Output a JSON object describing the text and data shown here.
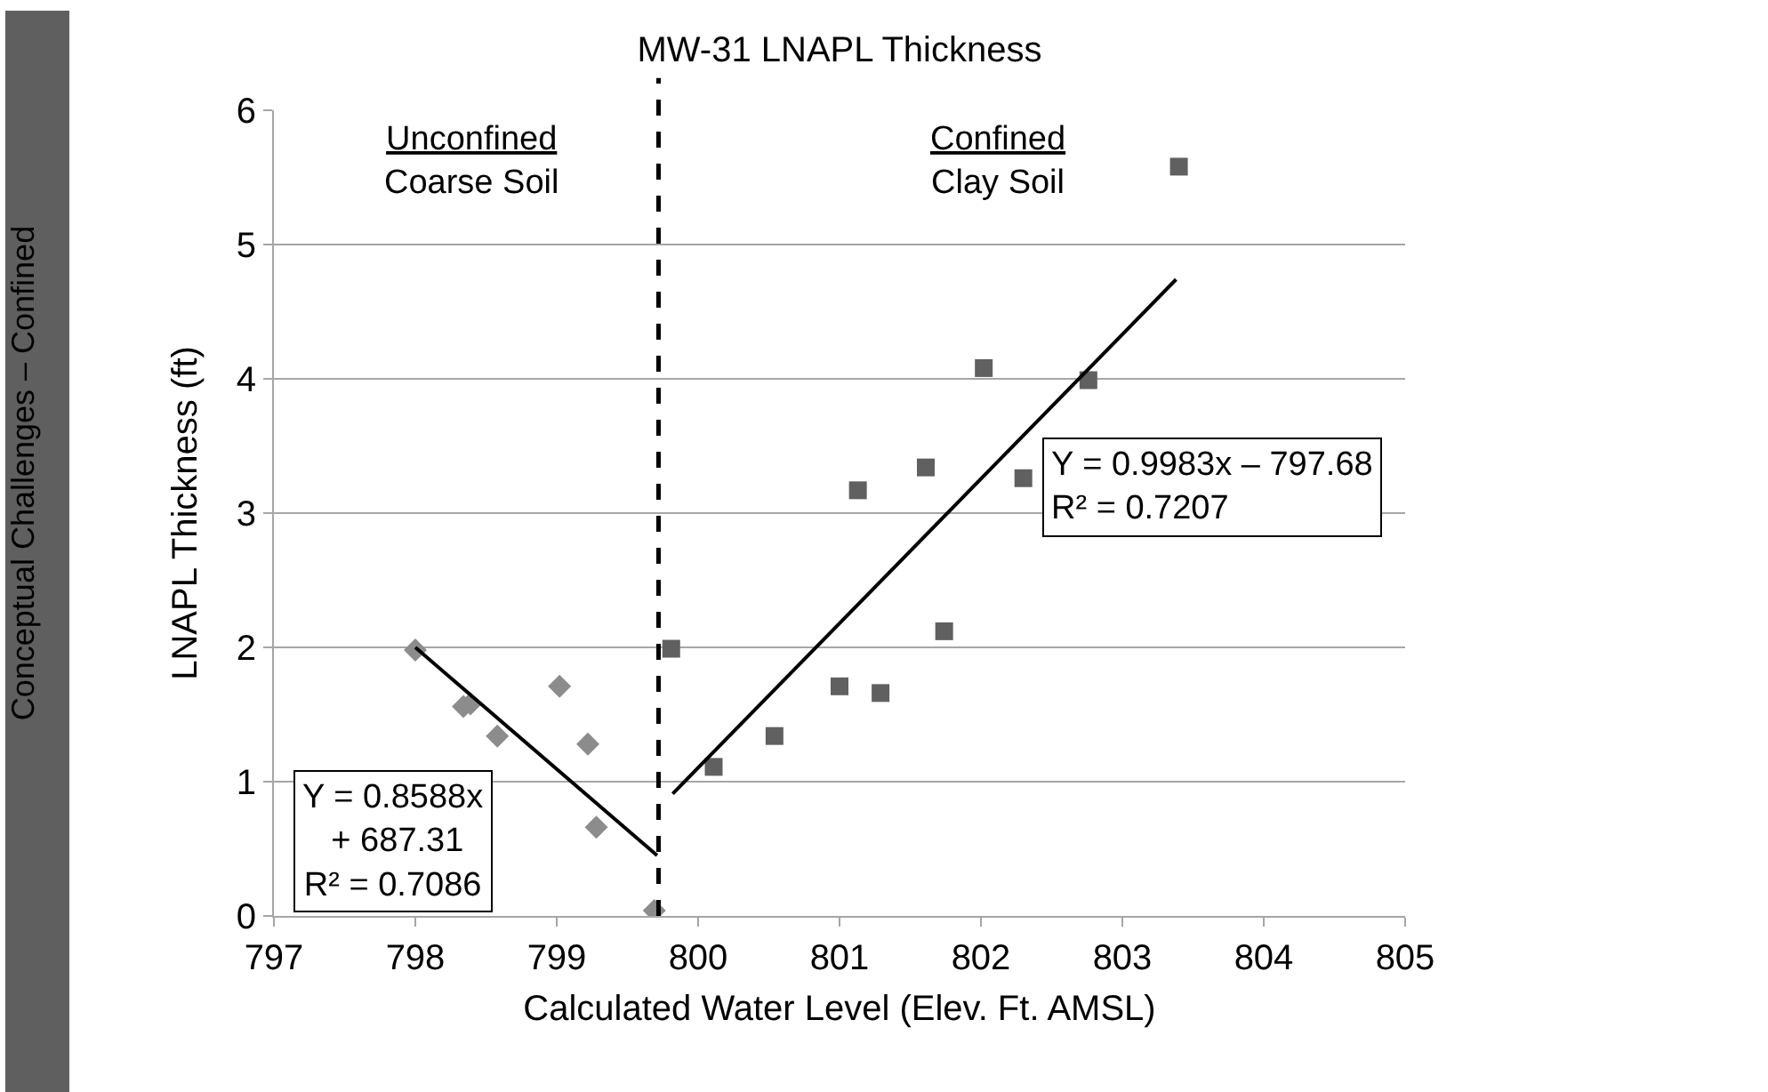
{
  "chart_data": {
    "type": "scatter",
    "title": "MW-31 LNAPL Thickness",
    "xlabel": "Calculated Water Level (Elev. Ft. AMSL)",
    "ylabel": "LNAPL Thickness (ft)",
    "xlim": [
      797,
      805
    ],
    "xticks": [
      797,
      798,
      799,
      800,
      801,
      802,
      803,
      804,
      805
    ],
    "ylim": [
      0,
      6
    ],
    "yticks": [
      0,
      1,
      2,
      3,
      4,
      5,
      6
    ],
    "grid": "y",
    "series": [
      {
        "marker": "diamond",
        "color": "#8c8c8c",
        "x": [
          798.0,
          798.34,
          798.39,
          798.58,
          799.02,
          799.22,
          799.28,
          799.69
        ],
        "values": [
          1.98,
          1.56,
          1.58,
          1.34,
          1.71,
          1.28,
          0.66,
          0.04
        ]
      },
      {
        "marker": "square",
        "color": "#606060",
        "x": [
          799.81,
          800.11,
          800.54,
          801.0,
          801.29,
          801.74,
          801.13,
          801.61,
          802.02,
          802.3,
          802.76,
          803.4
        ],
        "values": [
          1.99,
          1.11,
          1.34,
          1.71,
          1.66,
          2.12,
          3.17,
          3.34,
          4.08,
          3.26,
          3.99,
          5.58
        ]
      },
      {
        "type": "line",
        "marker": "none",
        "line_style": "solid",
        "color": "#000000",
        "x": [
          798.0,
          799.71
        ],
        "values": [
          2.0,
          0.45
        ]
      },
      {
        "type": "line",
        "marker": "none",
        "line_style": "solid",
        "color": "#000000",
        "x": [
          799.82,
          803.38
        ],
        "values": [
          0.91,
          4.74
        ]
      }
    ],
    "ref_lines": [
      {
        "axis": "x",
        "value": 799.72,
        "color": "#000000",
        "line_style": "dashed"
      }
    ],
    "annotations": [
      "Unconfined\nCoarse Soil",
      "Confined\nClay Soil",
      "Y = 0.8588x\n + 687.31\nR² = 0.7086",
      "Y = 0.9983x – 797.68\nR² = 0.7207",
      "Conceptual Challenges – Confined"
    ]
  }
}
